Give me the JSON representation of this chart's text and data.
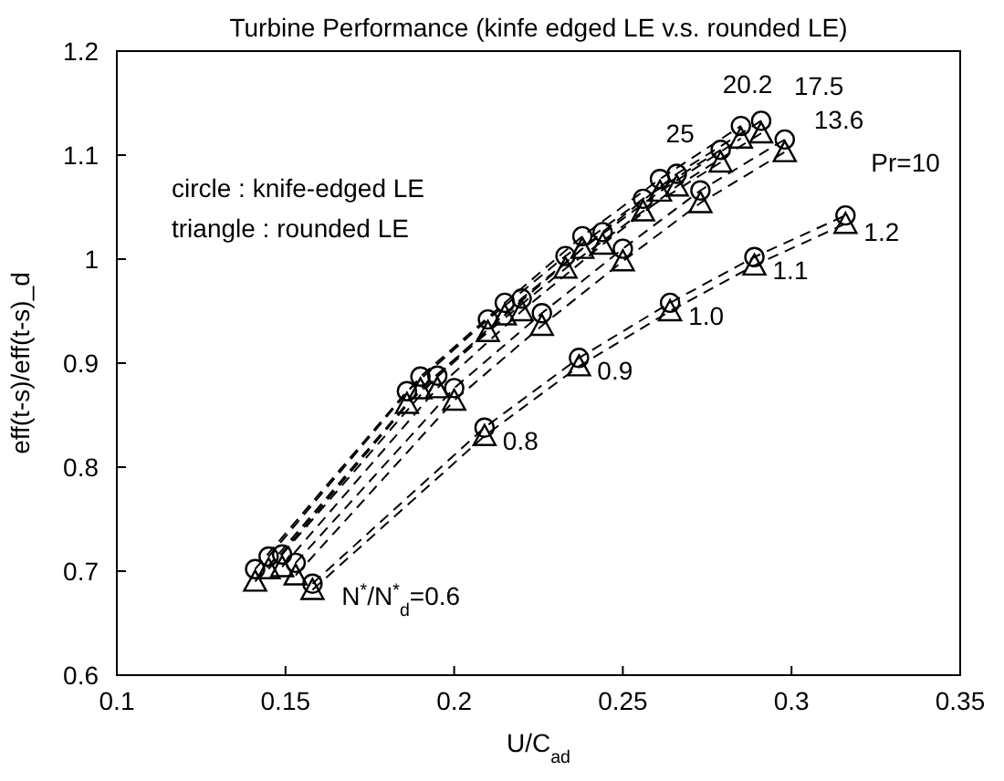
{
  "chart_data": {
    "type": "line",
    "title": "Turbine Performance (kinfe edged LE v.s. rounded LE)",
    "xlabel": "U/C$_{ad}$",
    "ylabel": "eff(t-s)/eff(t-s)_d",
    "xlim": [
      0.1,
      0.35
    ],
    "xticks": [
      0.1,
      0.15,
      0.2,
      0.25,
      0.3,
      0.35
    ],
    "ylim": [
      0.6,
      1.2
    ],
    "yticks": [
      0.6,
      0.7,
      0.8,
      0.9,
      1,
      1.1,
      1.2
    ],
    "grid": false,
    "line_style": "dashed",
    "series": [
      {
        "color": "#000000",
        "marker": "circle",
        "x": [
          0.141,
          0.186,
          0.21,
          0.233,
          0.256,
          0.279
        ],
        "values": [
          0.702,
          0.873,
          0.942,
          1.003,
          1.058,
          1.105
        ]
      },
      {
        "color": "#000000",
        "marker": "circle",
        "x": [
          0.145,
          0.19,
          0.215,
          0.238,
          0.261,
          0.285
        ],
        "values": [
          0.714,
          0.887,
          0.958,
          1.022,
          1.077,
          1.128
        ]
      },
      {
        "color": "#000000",
        "marker": "circle",
        "x": [
          0.149,
          0.195,
          0.22,
          0.244,
          0.266,
          0.291
        ],
        "values": [
          0.716,
          0.888,
          0.962,
          1.026,
          1.082,
          1.133
        ]
      },
      {
        "color": "#000000",
        "marker": "circle",
        "x": [
          0.153,
          0.2,
          0.226,
          0.25,
          0.273,
          0.298
        ],
        "values": [
          0.708,
          0.876,
          0.948,
          1.01,
          1.066,
          1.115
        ]
      },
      {
        "color": "#000000",
        "marker": "circle",
        "x": [
          0.158,
          0.209,
          0.237,
          0.264,
          0.289,
          0.316
        ],
        "values": [
          0.688,
          0.838,
          0.905,
          0.958,
          1.002,
          1.042
        ]
      },
      {
        "color": "#000000",
        "marker": "triangle",
        "x": [
          0.141,
          0.186,
          0.21,
          0.233,
          0.256,
          0.279
        ],
        "values": [
          0.69,
          0.861,
          0.93,
          0.991,
          1.046,
          1.093
        ]
      },
      {
        "color": "#000000",
        "marker": "triangle",
        "x": [
          0.145,
          0.19,
          0.215,
          0.238,
          0.261,
          0.285
        ],
        "values": [
          0.702,
          0.875,
          0.946,
          1.01,
          1.065,
          1.116
        ]
      },
      {
        "color": "#000000",
        "marker": "triangle",
        "x": [
          0.149,
          0.195,
          0.22,
          0.244,
          0.266,
          0.291
        ],
        "values": [
          0.704,
          0.876,
          0.95,
          1.014,
          1.07,
          1.121
        ]
      },
      {
        "color": "#000000",
        "marker": "triangle",
        "x": [
          0.153,
          0.2,
          0.226,
          0.25,
          0.273,
          0.298
        ],
        "values": [
          0.696,
          0.864,
          0.936,
          0.998,
          1.054,
          1.103
        ]
      },
      {
        "color": "#000000",
        "marker": "triangle",
        "x": [
          0.158,
          0.209,
          0.237,
          0.264,
          0.289,
          0.316
        ],
        "values": [
          0.682,
          0.83,
          0.897,
          0.95,
          0.994,
          1.034
        ]
      }
    ],
    "annotations": [
      "circle : knife-edged LE",
      "triangle : rounded LE",
      {
        "text": "N$^{*}$/N$^{*}$$_{d}$=0.6",
        "x": 0.158,
        "y": 0.682
      },
      {
        "text": "0.8",
        "x": 0.209,
        "y": 0.838
      },
      {
        "text": "0.9",
        "x": 0.237,
        "y": 0.905
      },
      {
        "text": "1.0",
        "x": 0.264,
        "y": 0.958
      },
      {
        "text": "1.1",
        "x": 0.289,
        "y": 1.002
      },
      {
        "text": "1.2",
        "x": 0.316,
        "y": 1.042
      },
      {
        "text": "25",
        "x": 0.279,
        "y": 1.105
      },
      {
        "text": "20.2",
        "x": 0.285,
        "y": 1.128
      },
      {
        "text": "17.5",
        "x": 0.291,
        "y": 1.133
      },
      {
        "text": "13.6",
        "x": 0.298,
        "y": 1.115
      },
      {
        "text": "Pr=10",
        "x": 0.316,
        "y": 1.042
      }
    ]
  }
}
